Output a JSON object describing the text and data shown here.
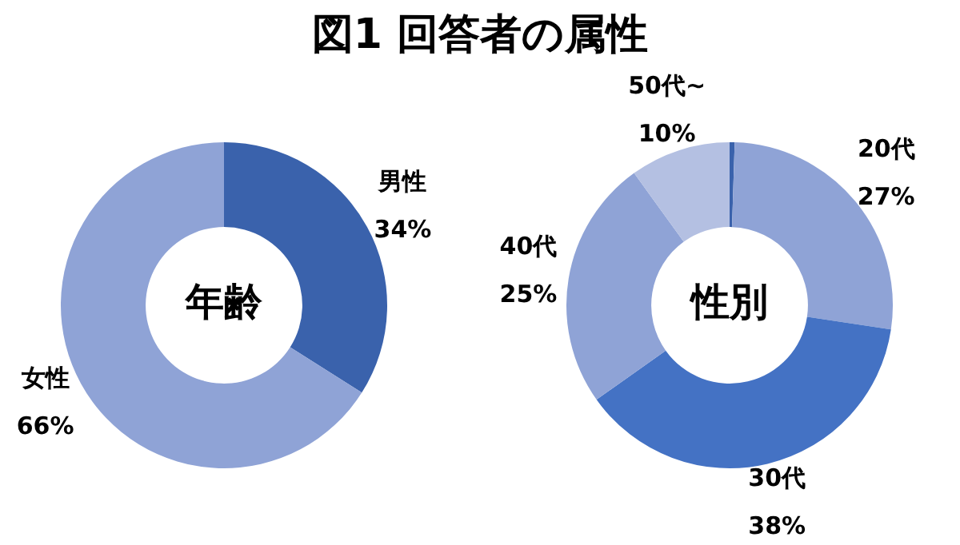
{
  "chart_data": [
    {
      "type": "donut",
      "title": "図1 回答者の属性",
      "annotations": [
        "年齢"
      ],
      "categories": [
        "男性",
        "女性"
      ],
      "values": [
        34,
        66
      ],
      "value_labels": [
        "34%",
        "66%"
      ],
      "colors": [
        "#3a62ac",
        "#8fa3d6"
      ],
      "legend": false
    },
    {
      "type": "donut",
      "annotations": [
        "性別"
      ],
      "categories": [
        null,
        "20代",
        "30代",
        "40代",
        "50代~"
      ],
      "values": [
        0.5,
        27,
        38,
        25,
        10
      ],
      "value_labels": [
        null,
        "27%",
        "38%",
        "25%",
        "10%"
      ],
      "colors": [
        "#3a62ac",
        "#8fa3d6",
        "#4472c4",
        "#8fa3d6",
        "#b4c0e2"
      ],
      "legend": false
    }
  ]
}
